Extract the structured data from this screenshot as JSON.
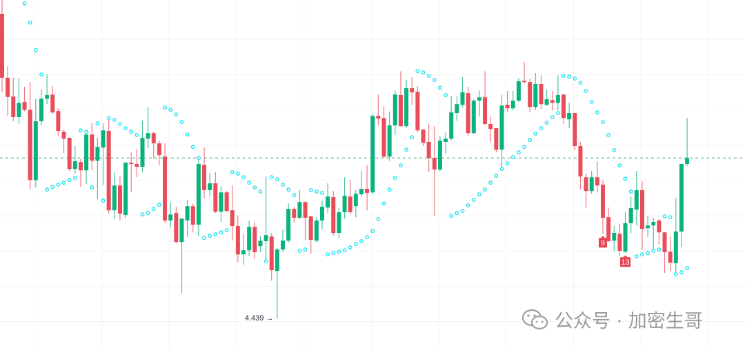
{
  "chart_data": {
    "type": "candlestick",
    "title": "",
    "xlabel": "",
    "ylabel": "",
    "ylim": [
      4.3315,
      5.594
    ],
    "grid": true,
    "colors": {
      "up": "#0ab27e",
      "down": "#ea4d5a",
      "sar": "#1ee3f2",
      "last_price_line": "#2fa57f",
      "tag": "#e8414f"
    },
    "last_price": 5.021,
    "low_annotation": {
      "label": "4.439 →",
      "value": 4.439,
      "index": 49
    },
    "count_tags": [
      {
        "label": "9",
        "index": 107
      },
      {
        "label": "13",
        "index": 111
      }
    ],
    "ohlc": [
      [
        5.544,
        5.594,
        5.259,
        5.312
      ],
      [
        5.312,
        5.354,
        5.174,
        5.242
      ],
      [
        5.244,
        5.312,
        5.154,
        5.169
      ],
      [
        5.169,
        5.309,
        5.144,
        5.221
      ],
      [
        5.224,
        5.279,
        5.191,
        5.196
      ],
      [
        5.196,
        5.296,
        4.909,
        4.941
      ],
      [
        4.941,
        5.236,
        4.914,
        5.154
      ],
      [
        5.154,
        5.271,
        5.139,
        5.236
      ],
      [
        5.236,
        5.324,
        5.216,
        5.249
      ],
      [
        5.251,
        5.281,
        5.181,
        5.186
      ],
      [
        5.191,
        5.201,
        5.099,
        5.119
      ],
      [
        5.116,
        5.124,
        5.039,
        5.091
      ],
      [
        5.094,
        5.096,
        4.974,
        4.981
      ],
      [
        4.981,
        5.064,
        4.964,
        5.009
      ],
      [
        5.006,
        5.019,
        4.916,
        4.976
      ],
      [
        4.976,
        5.108,
        4.926,
        5.106
      ],
      [
        5.106,
        5.149,
        4.976,
        5.011
      ],
      [
        5.011,
        5.094,
        4.871,
        5.061
      ],
      [
        5.059,
        5.146,
        4.924,
        5.121
      ],
      [
        5.119,
        5.166,
        4.819,
        4.831
      ],
      [
        4.831,
        4.969,
        4.799,
        4.921
      ],
      [
        4.921,
        4.954,
        4.794,
        4.819
      ],
      [
        4.814,
        5.006,
        4.804,
        5.004
      ],
      [
        5.004,
        5.041,
        4.899,
        4.999
      ],
      [
        4.999,
        5.054,
        4.951,
        4.989
      ],
      [
        4.989,
        5.156,
        4.969,
        5.094
      ],
      [
        5.091,
        5.206,
        5.056,
        5.111
      ],
      [
        5.111,
        5.116,
        5.019,
        5.074
      ],
      [
        5.074,
        5.084,
        4.994,
        5.031
      ],
      [
        5.026,
        5.074,
        4.786,
        4.794
      ],
      [
        4.794,
        4.859,
        4.769,
        4.816
      ],
      [
        4.821,
        4.844,
        4.711,
        4.716
      ],
      [
        4.716,
        4.801,
        4.531,
        4.801
      ],
      [
        4.794,
        4.869,
        4.734,
        4.846
      ],
      [
        4.846,
        4.856,
        4.751,
        4.779
      ],
      [
        4.779,
        5.019,
        4.736,
        4.999
      ],
      [
        4.996,
        5.059,
        4.874,
        4.904
      ],
      [
        4.904,
        4.966,
        4.881,
        4.929
      ],
      [
        4.929,
        4.969,
        4.821,
        4.826
      ],
      [
        4.826,
        4.919,
        4.789,
        4.896
      ],
      [
        4.896,
        4.901,
        4.824,
        4.829
      ],
      [
        4.831,
        4.921,
        4.721,
        4.774
      ],
      [
        4.774,
        4.811,
        4.644,
        4.671
      ],
      [
        4.671,
        4.746,
        4.634,
        4.686
      ],
      [
        4.686,
        4.794,
        4.666,
        4.771
      ],
      [
        4.771,
        4.786,
        4.654,
        4.679
      ],
      [
        4.701,
        4.739,
        4.679,
        4.721
      ],
      [
        4.719,
        4.954,
        4.646,
        4.741
      ],
      [
        4.736,
        4.749,
        4.576,
        4.614
      ],
      [
        4.611,
        4.696,
        4.439,
        4.689
      ],
      [
        4.689,
        4.761,
        4.681,
        4.721
      ],
      [
        4.721,
        4.856,
        4.714,
        4.836
      ],
      [
        4.836,
        4.844,
        4.786,
        4.804
      ],
      [
        4.804,
        4.904,
        4.799,
        4.861
      ],
      [
        4.861,
        4.864,
        4.724,
        4.804
      ],
      [
        4.809,
        4.811,
        4.674,
        4.724
      ],
      [
        4.721,
        4.806,
        4.714,
        4.794
      ],
      [
        4.794,
        4.866,
        4.761,
        4.844
      ],
      [
        4.841,
        4.929,
        4.821,
        4.881
      ],
      [
        4.879,
        4.901,
        4.739,
        4.749
      ],
      [
        4.749,
        4.839,
        4.729,
        4.824
      ],
      [
        4.824,
        4.951,
        4.801,
        4.884
      ],
      [
        4.881,
        4.941,
        4.816,
        4.824
      ],
      [
        4.846,
        4.904,
        4.806,
        4.891
      ],
      [
        4.889,
        4.974,
        4.881,
        4.909
      ],
      [
        4.909,
        4.996,
        4.831,
        4.894
      ],
      [
        4.896,
        5.181,
        4.889,
        5.174
      ],
      [
        5.174,
        5.251,
        5.139,
        5.164
      ],
      [
        5.166,
        5.209,
        5.021,
        5.026
      ],
      [
        5.026,
        5.189,
        5.011,
        5.139
      ],
      [
        5.139,
        5.266,
        5.104,
        5.251
      ],
      [
        5.249,
        5.336,
        5.134,
        5.136
      ],
      [
        5.136,
        5.304,
        5.131,
        5.274
      ],
      [
        5.274,
        5.314,
        5.214,
        5.259
      ],
      [
        5.261,
        5.281,
        5.114,
        5.121
      ],
      [
        5.124,
        5.126,
        5.064,
        5.076
      ],
      [
        5.079,
        5.146,
        4.969,
        5.021
      ],
      [
        5.021,
        5.136,
        4.809,
        4.979
      ],
      [
        4.979,
        5.099,
        4.974,
        5.084
      ],
      [
        5.079,
        5.114,
        5.036,
        5.091
      ],
      [
        5.091,
        5.246,
        5.086,
        5.186
      ],
      [
        5.184,
        5.244,
        5.156,
        5.216
      ],
      [
        5.214,
        5.314,
        5.204,
        5.259
      ],
      [
        5.256,
        5.279,
        5.101,
        5.111
      ],
      [
        5.111,
        5.234,
        5.109,
        5.229
      ],
      [
        5.229,
        5.266,
        5.171,
        5.241
      ],
      [
        5.241,
        5.336,
        5.142,
        5.144
      ],
      [
        5.144,
        5.171,
        5.079,
        5.126
      ],
      [
        5.129,
        5.131,
        5.041,
        5.051
      ],
      [
        5.051,
        5.249,
        4.981,
        5.211
      ],
      [
        5.214,
        5.264,
        5.186,
        5.201
      ],
      [
        5.201,
        5.264,
        5.194,
        5.229
      ],
      [
        5.229,
        5.311,
        5.224,
        5.299
      ],
      [
        5.301,
        5.369,
        5.291,
        5.296
      ],
      [
        5.296,
        5.309,
        5.186,
        5.206
      ],
      [
        5.206,
        5.329,
        5.194,
        5.289
      ],
      [
        5.289,
        5.321,
        5.199,
        5.216
      ],
      [
        5.214,
        5.269,
        5.209,
        5.234
      ],
      [
        5.231,
        5.264,
        5.194,
        5.221
      ],
      [
        5.221,
        5.321,
        5.194,
        5.249
      ],
      [
        5.251,
        5.253,
        5.144,
        5.166
      ],
      [
        5.161,
        5.221,
        5.129,
        5.184
      ],
      [
        5.184,
        5.186,
        5.049,
        5.064
      ],
      [
        5.064,
        5.079,
        4.906,
        4.954
      ],
      [
        4.951,
        4.964,
        4.839,
        4.901
      ],
      [
        4.901,
        4.974,
        4.891,
        4.951
      ],
      [
        4.951,
        5.009,
        4.896,
        4.921
      ],
      [
        4.924,
        4.939,
        4.746,
        4.804
      ],
      [
        4.806,
        4.841,
        4.714,
        4.719
      ],
      [
        4.721,
        4.774,
        4.684,
        4.749
      ],
      [
        4.746,
        4.781,
        4.666,
        4.684
      ],
      [
        4.681,
        4.826,
        4.676,
        4.784
      ],
      [
        4.784,
        4.881,
        4.749,
        4.839
      ],
      [
        4.834,
        4.974,
        4.776,
        4.904
      ],
      [
        4.904,
        4.936,
        4.689,
        4.764
      ],
      [
        4.766,
        4.811,
        4.734,
        4.776
      ],
      [
        4.776,
        4.804,
        4.684,
        4.789
      ],
      [
        4.794,
        4.799,
        4.706,
        4.751
      ],
      [
        4.751,
        4.753,
        4.604,
        4.679
      ],
      [
        4.681,
        4.736,
        4.611,
        4.641
      ],
      [
        4.639,
        4.876,
        4.601,
        4.754
      ],
      [
        4.754,
        4.999,
        4.699,
        4.999
      ],
      [
        4.999,
        5.166,
        4.991,
        5.021
      ]
    ],
    "parabolic_sar": [
      null,
      null,
      null,
      null,
      5.582,
      5.512,
      5.412,
      5.324,
      4.906,
      4.916,
      4.924,
      4.931,
      4.941,
      4.949,
      5.121,
      5.116,
      4.914,
      5.146,
      4.866,
      5.166,
      5.159,
      5.144,
      5.129,
      5.116,
      5.104,
      4.816,
      4.821,
      4.836,
      4.851,
      5.204,
      5.196,
      5.179,
      5.151,
      5.106,
      5.061,
      5.021,
      4.731,
      4.739,
      4.744,
      4.751,
      4.759,
      4.969,
      4.964,
      4.951,
      4.931,
      4.914,
      4.899,
      4.646,
      4.951,
      4.944,
      4.924,
      4.906,
      4.886,
      4.684,
      4.689,
      4.904,
      4.899,
      4.894,
      4.671,
      4.676,
      4.681,
      4.686,
      4.696,
      4.709,
      4.719,
      4.734,
      4.756,
      4.799,
      4.856,
      4.906,
      4.949,
      4.994,
      5.051,
      5.096,
      5.336,
      5.331,
      5.319,
      5.304,
      5.276,
      5.249,
      4.811,
      4.821,
      4.829,
      4.849,
      4.869,
      4.889,
      4.906,
      4.931,
      4.956,
      4.981,
      5.001,
      5.024,
      5.041,
      5.061,
      5.086,
      5.109,
      5.129,
      5.149,
      5.169,
      5.184,
      5.319,
      5.316,
      5.309,
      5.294,
      5.264,
      5.224,
      5.186,
      5.151,
      5.104,
      5.049,
      4.994,
      4.946,
      4.899,
      4.664,
      4.671,
      4.676,
      4.684,
      4.689,
      4.809,
      4.806,
      4.599,
      4.606,
      4.621
    ]
  },
  "watermark": {
    "icon": "wechat-icon",
    "text": "公众号 · 加密生哥"
  }
}
